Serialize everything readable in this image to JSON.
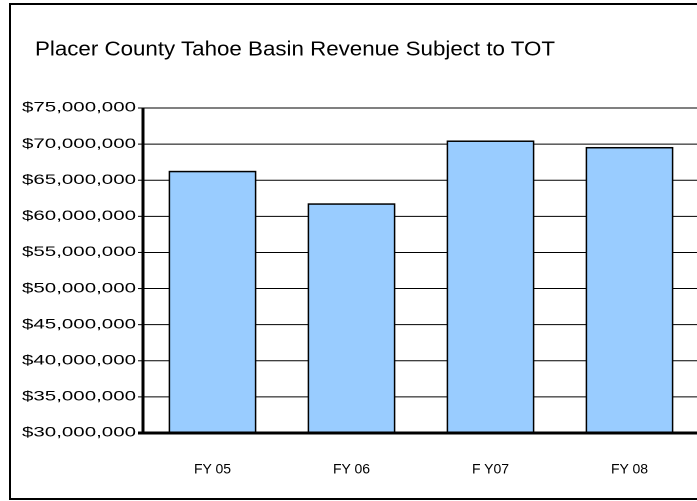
{
  "chart_data": {
    "type": "bar",
    "title": "Placer County Tahoe Basin Revenue Subject to TOT",
    "categories": [
      "FY 05",
      "FY 06",
      "F Y07",
      "FY 08"
    ],
    "values": [
      66200000,
      61700000,
      70400000,
      69500000
    ],
    "color": "#99ccff",
    "ylim": [
      30000000,
      75000000
    ],
    "yticks": [
      {
        "value": 30000000,
        "label": "$30,000,000"
      },
      {
        "value": 35000000,
        "label": "$35,000,000"
      },
      {
        "value": 40000000,
        "label": "$40,000,000"
      },
      {
        "value": 45000000,
        "label": "$45,000,000"
      },
      {
        "value": 50000000,
        "label": "$50,000,000"
      },
      {
        "value": 55000000,
        "label": "$55,000,000"
      },
      {
        "value": 60000000,
        "label": "$60,000,000"
      },
      {
        "value": 65000000,
        "label": "$65,000,000"
      },
      {
        "value": 70000000,
        "label": "$70,000,000"
      },
      {
        "value": 75000000,
        "label": "$75,000,000"
      }
    ],
    "grid": true
  }
}
